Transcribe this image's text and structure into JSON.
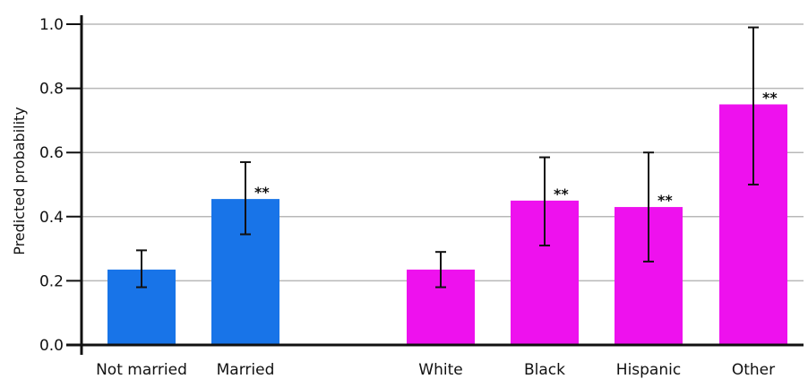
{
  "chart_data": {
    "type": "bar",
    "ylabel": "Predicted probability",
    "ylim": [
      0,
      1.0
    ],
    "yticks": [
      "0.0",
      "0.2",
      "0.4",
      "0.6",
      "0.8",
      "1.0"
    ],
    "grid": "horizontal",
    "categories": [
      "Not married",
      "Married",
      "White",
      "Black",
      "Hispanic",
      "Other"
    ],
    "values": [
      0.235,
      0.455,
      0.235,
      0.45,
      0.43,
      0.75
    ],
    "error_low": [
      0.18,
      0.345,
      0.18,
      0.31,
      0.26,
      0.5
    ],
    "error_high": [
      0.295,
      0.57,
      0.29,
      0.585,
      0.6,
      0.99
    ],
    "significance": [
      "",
      "**",
      "",
      "**",
      "**",
      "**"
    ],
    "colors": [
      "#1874e8",
      "#1874e8",
      "#ee11ee",
      "#ee11ee",
      "#ee11ee",
      "#ee11ee"
    ]
  }
}
